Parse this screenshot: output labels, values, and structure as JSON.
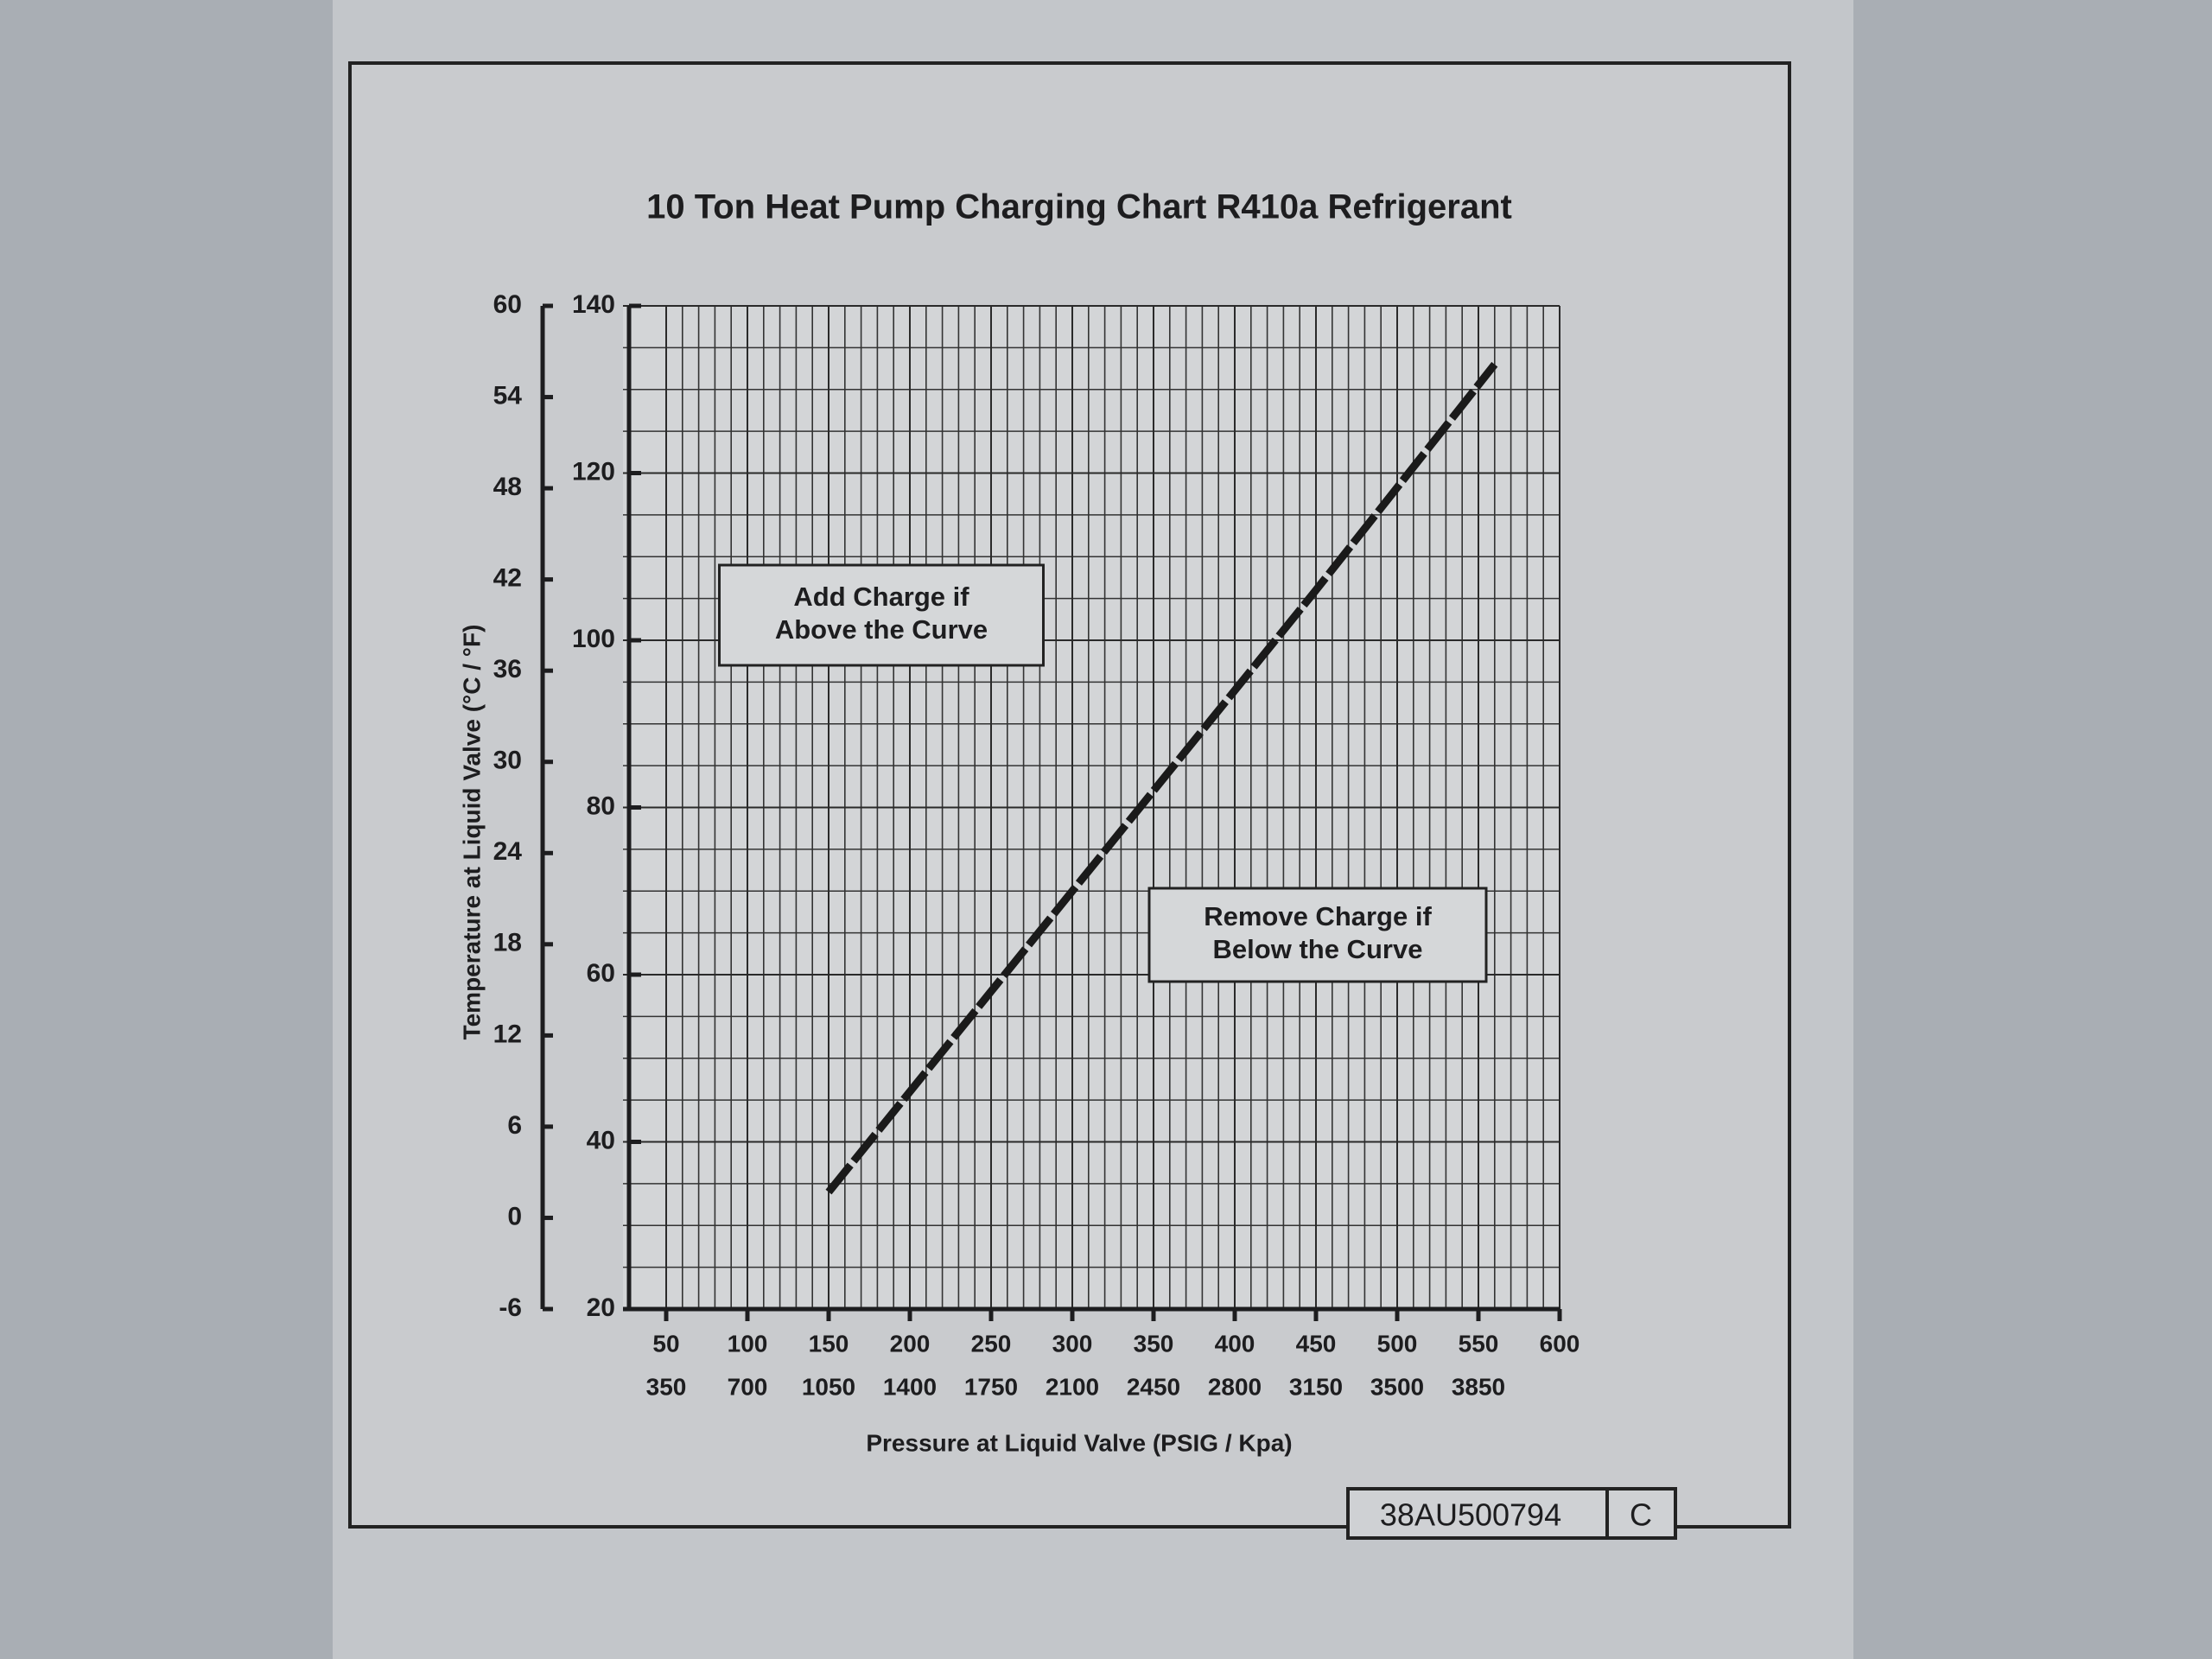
{
  "chart_data": {
    "type": "line",
    "title": "10 Ton Heat Pump Charging Chart R410a Refrigerant",
    "xlabel": "Pressure at Liquid Valve (PSIG / Kpa)",
    "ylabel": "Temperature at Liquid Valve (°C / °F)",
    "x": [
      150,
      250,
      350,
      450,
      560
    ],
    "series": [
      {
        "color": "#1a1a1a",
        "axis": "y2",
        "values": [
          34,
          58,
          82,
          106,
          133
        ]
      }
    ],
    "xlim": [
      50,
      600
    ],
    "xticks": [
      50,
      100,
      150,
      200,
      250,
      300,
      350,
      400,
      450,
      500,
      550,
      600
    ],
    "x2lim": [
      350,
      4200
    ],
    "x2ticks": [
      350,
      700,
      1050,
      1400,
      1750,
      2100,
      2450,
      2800,
      3150,
      3500,
      3850
    ],
    "ylim": [
      -6,
      60
    ],
    "yticks": [
      -6,
      0,
      6,
      12,
      18,
      24,
      30,
      36,
      42,
      48,
      54,
      60
    ],
    "y2lim": [
      20,
      140
    ],
    "y2ticks": [
      20,
      40,
      60,
      80,
      100,
      120,
      140
    ],
    "grid": true,
    "annotations": [
      [
        "Add Charge if",
        "Above the Curve"
      ],
      [
        "Remove Charge if",
        "Below the Curve"
      ]
    ],
    "footer": {
      "drawing_number": "38AU500794",
      "revision": "C"
    }
  }
}
